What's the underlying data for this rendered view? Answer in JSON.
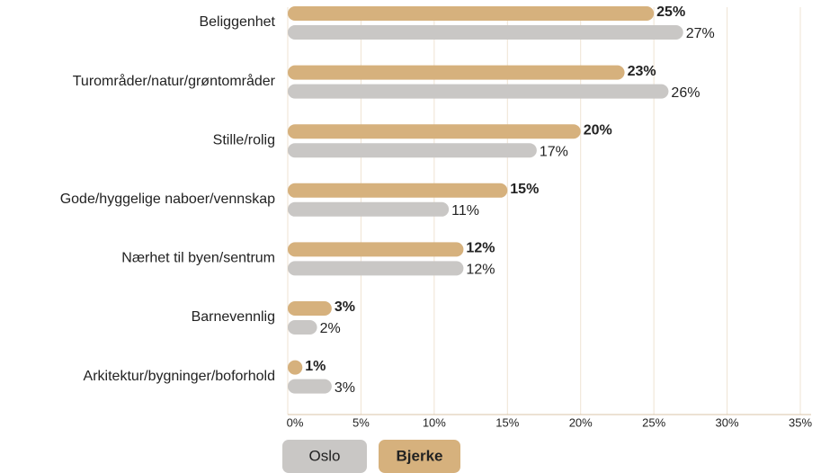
{
  "chart_data": {
    "type": "bar",
    "orientation": "horizontal",
    "categories": [
      "Beliggenhet",
      "Turområder/natur/grøntområder",
      "Stille/rolig",
      "Gode/hyggelige naboer/vennskap",
      "Nærhet til byen/sentrum",
      "Barnevennlig",
      "Arkitektur/bygninger/boforhold"
    ],
    "series": [
      {
        "name": "Bjerke",
        "color": "#d6b17d",
        "values": [
          25,
          23,
          20,
          15,
          12,
          3,
          1
        ],
        "value_labels": [
          "25%",
          "23%",
          "20%",
          "15%",
          "12%",
          "3%",
          "1%"
        ]
      },
      {
        "name": "Oslo",
        "color": "#c9c7c5",
        "values": [
          27,
          26,
          17,
          11,
          12,
          2,
          3
        ],
        "value_labels": [
          "27%",
          "26%",
          "17%",
          "11%",
          "12%",
          "2%",
          "3%"
        ]
      }
    ],
    "xlim": [
      0,
      35
    ],
    "xticks": [
      {
        "value": 0,
        "label": "0%"
      },
      {
        "value": 5,
        "label": "5%"
      },
      {
        "value": 10,
        "label": "10%"
      },
      {
        "value": 15,
        "label": "15%"
      },
      {
        "value": 20,
        "label": "20%"
      },
      {
        "value": 25,
        "label": "25%"
      },
      {
        "value": 30,
        "label": "30%"
      },
      {
        "value": 35,
        "label": "35%"
      }
    ],
    "grid": true
  }
}
